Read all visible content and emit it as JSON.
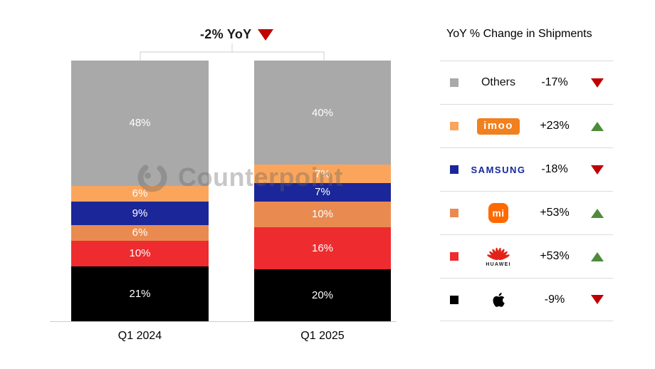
{
  "chart": {
    "annotation": {
      "label": "-2% YoY",
      "direction": "down"
    }
  },
  "watermark": {
    "text": "Counterpoint"
  },
  "chart_data": {
    "type": "bar",
    "stacked": true,
    "unit": "%",
    "categories": [
      "Q1 2024",
      "Q1 2025"
    ],
    "series": [
      {
        "name": "Others",
        "color": "#A9A9A9",
        "values": [
          48,
          40
        ]
      },
      {
        "name": "imoo",
        "color": "#FBA55C",
        "values": [
          6,
          7
        ]
      },
      {
        "name": "Samsung",
        "color": "#1B2699",
        "values": [
          9,
          7
        ]
      },
      {
        "name": "Xiaomi",
        "color": "#E98B50",
        "values": [
          6,
          10
        ]
      },
      {
        "name": "Huawei",
        "color": "#EE2B2F",
        "values": [
          10,
          16
        ]
      },
      {
        "name": "Apple",
        "color": "#000000",
        "values": [
          21,
          20
        ]
      }
    ],
    "title": "",
    "xlabel": "",
    "ylabel": "",
    "ylim": [
      0,
      100
    ],
    "annotation": "-2% YoY (down)",
    "value_label_format": "{value}%",
    "legend_position": "right"
  },
  "legend": {
    "title": "YoY % Change in Shipments",
    "rows": [
      {
        "brand": "Others",
        "brand_label": "Others",
        "change": "-17%",
        "direction": "down",
        "swatch": "#A9A9A9"
      },
      {
        "brand": "imoo",
        "brand_label": "imoo",
        "change": "+23%",
        "direction": "up",
        "swatch": "#FBA55C",
        "logo_bg": "#F1801E"
      },
      {
        "brand": "Samsung",
        "brand_label": "SAMSUNG",
        "change": "-18%",
        "direction": "down",
        "swatch": "#1B2699",
        "wordmark_color": "#1428A0"
      },
      {
        "brand": "Xiaomi",
        "brand_label": "mi",
        "change": "+53%",
        "direction": "up",
        "swatch": "#E98B50",
        "logo_bg": "#FF6900"
      },
      {
        "brand": "Huawei",
        "brand_label": "HUAWEI",
        "change": "+53%",
        "direction": "up",
        "swatch": "#EE2B2F",
        "logo_color": "#E2231A"
      },
      {
        "brand": "Apple",
        "change": "-9%",
        "direction": "down",
        "swatch": "#000000"
      }
    ]
  },
  "colors": {
    "up_green": "#4E8B3B",
    "down_red": "#C00000",
    "axis_gray": "#CCCCCC"
  }
}
